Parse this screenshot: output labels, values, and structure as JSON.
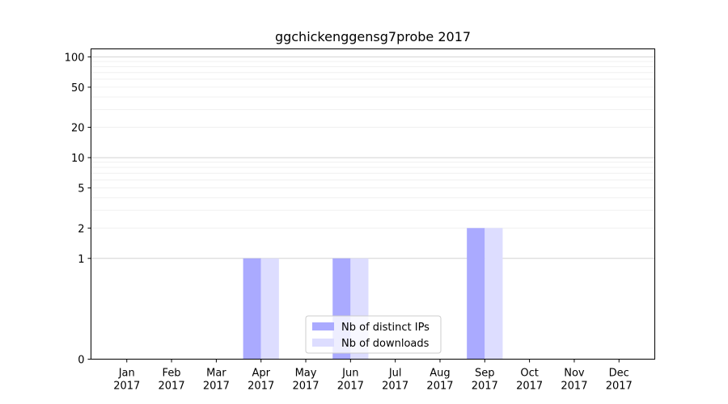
{
  "chart_data": {
    "type": "bar",
    "title": "ggchickenggensg7probe 2017",
    "xlabel": "",
    "ylabel": "",
    "yscale": "symlog",
    "ylim": [
      0,
      120
    ],
    "categories": [
      [
        "Jan",
        "2017"
      ],
      [
        "Feb",
        "2017"
      ],
      [
        "Mar",
        "2017"
      ],
      [
        "Apr",
        "2017"
      ],
      [
        "May",
        "2017"
      ],
      [
        "Jun",
        "2017"
      ],
      [
        "Jul",
        "2017"
      ],
      [
        "Aug",
        "2017"
      ],
      [
        "Sep",
        "2017"
      ],
      [
        "Oct",
        "2017"
      ],
      [
        "Nov",
        "2017"
      ],
      [
        "Dec",
        "2017"
      ]
    ],
    "yticks": [
      {
        "value": 0,
        "label": "0"
      },
      {
        "value": 1,
        "label": "1"
      },
      {
        "value": 2,
        "label": "2"
      },
      {
        "value": 5,
        "label": "5"
      },
      {
        "value": 10,
        "label": "10"
      },
      {
        "value": 20,
        "label": "20"
      },
      {
        "value": 50,
        "label": "50"
      },
      {
        "value": 100,
        "label": "100"
      }
    ],
    "series": [
      {
        "name": "Nb of distinct IPs",
        "color": "#aaaaff",
        "values": [
          0,
          0,
          0,
          1,
          0,
          1,
          0,
          0,
          2,
          0,
          0,
          0
        ]
      },
      {
        "name": "Nb of downloads",
        "color": "#ddddff",
        "values": [
          0,
          0,
          0,
          1,
          0,
          1,
          0,
          0,
          2,
          0,
          0,
          0
        ]
      }
    ],
    "grid": true,
    "legend_position": "lower-center"
  }
}
